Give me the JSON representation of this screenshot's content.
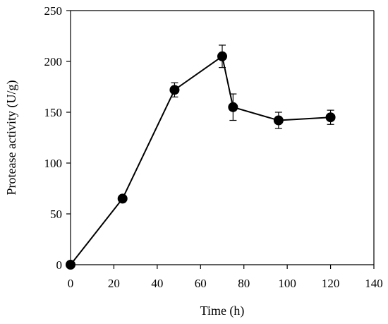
{
  "chart_data": {
    "type": "line",
    "title": "",
    "xlabel": "Time (h)",
    "ylabel": "Protease activity (U/g)",
    "xlim": [
      0,
      140
    ],
    "ylim": [
      0,
      250
    ],
    "xticks": [
      0,
      20,
      40,
      60,
      80,
      100,
      120,
      140
    ],
    "yticks": [
      0,
      50,
      100,
      150,
      200,
      250
    ],
    "grid": false,
    "legend": "none",
    "series": [
      {
        "points": [
          {
            "x": 0,
            "y": 0,
            "err": 0
          },
          {
            "x": 24,
            "y": 65,
            "err": 2
          },
          {
            "x": 48,
            "y": 172,
            "err": 7
          },
          {
            "x": 70,
            "y": 205,
            "err": 11
          },
          {
            "x": 75,
            "y": 155,
            "err": 13
          },
          {
            "x": 96,
            "y": 142,
            "err": 8
          },
          {
            "x": 120,
            "y": 145,
            "err": 7
          }
        ],
        "color": "#000000",
        "marker": "filled-circle"
      }
    ]
  }
}
